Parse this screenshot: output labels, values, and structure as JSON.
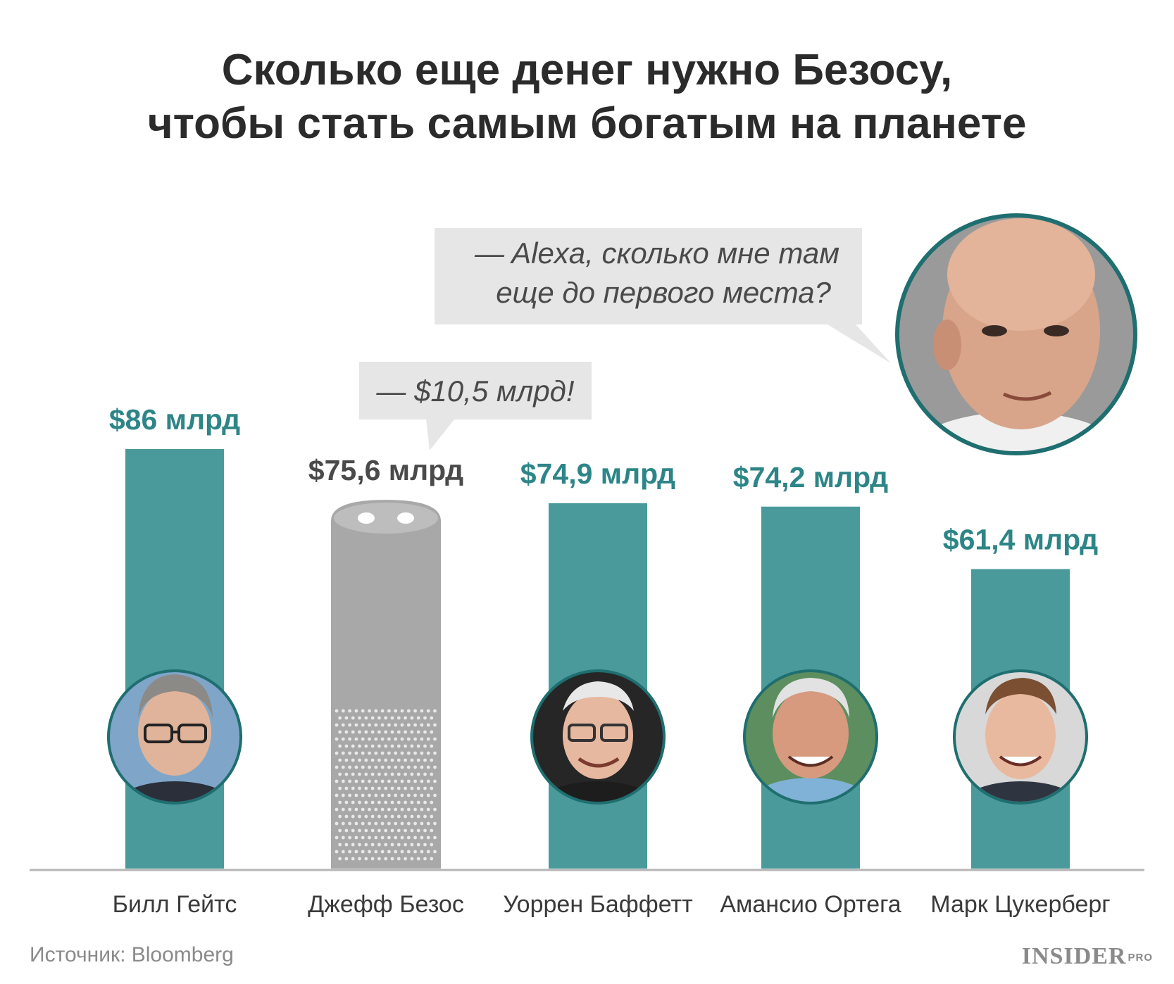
{
  "title": {
    "line1": "Сколько еще денег нужно Безосу,",
    "line2": "чтобы стать самым богатым на планете"
  },
  "bezos_bubble": {
    "line1": "— Alexa, сколько мне там",
    "line2": "еще до первого места?"
  },
  "alexa_bubble": "— $10,5 млрд!",
  "source": "Источник: Bloomberg",
  "logo": {
    "main": "INSIDER",
    "sup": "PRO"
  },
  "colors": {
    "bar": "#4a9a9c",
    "label": "#2d8587",
    "alexa": "#a8a8a8",
    "dark_label": "#4a4a4a",
    "bubble": "#e6e6e6"
  },
  "chart_data": {
    "type": "bar",
    "categories": [
      "Билл Гейтс",
      "Джефф Безос",
      "Уоррен Баффетт",
      "Амансио Ортега",
      "Марк Цукерберг"
    ],
    "values": [
      86,
      75.6,
      74.9,
      74.2,
      61.4
    ],
    "value_labels": [
      "$86 млрд",
      "$75,6 млрд",
      "$74,9 млрд",
      "$74,2 млрд",
      "$61,4 млрд"
    ],
    "highlight_index": 1,
    "unit": "млрд $",
    "ylim": [
      0,
      86
    ],
    "grid": false
  }
}
